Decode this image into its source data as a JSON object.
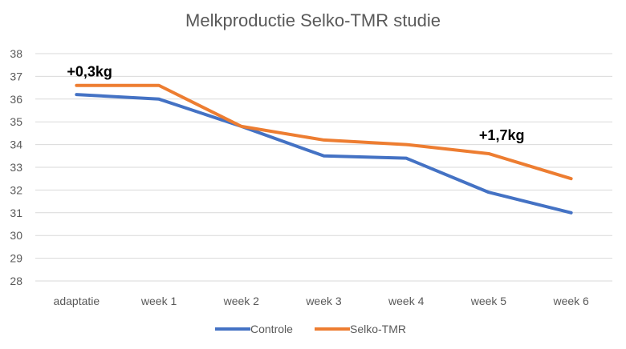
{
  "chart_data": {
    "type": "line",
    "title": "Melkproductie Selko-TMR studie",
    "xlabel": "",
    "ylabel": "",
    "categories": [
      "adaptatie",
      "week 1",
      "week 2",
      "week 3",
      "week 4",
      "week 5",
      "week 6"
    ],
    "ylim": [
      28,
      38
    ],
    "yticks": [
      28,
      29,
      30,
      31,
      32,
      33,
      34,
      35,
      36,
      37,
      38
    ],
    "grid": true,
    "legend_position": "bottom",
    "series": [
      {
        "name": "Controle",
        "color": "#4472C4",
        "values": [
          36.2,
          36.0,
          34.8,
          33.5,
          33.4,
          31.9,
          31.0
        ]
      },
      {
        "name": "Selko-TMR",
        "color": "#ED7D31",
        "values": [
          36.6,
          36.6,
          34.8,
          34.2,
          34.0,
          33.6,
          32.5
        ]
      }
    ],
    "annotations": [
      {
        "text": "+0,3kg",
        "category": "adaptatie",
        "y": 37.2
      },
      {
        "text": "+1,7kg",
        "category": "week 5",
        "y": 34.4
      }
    ]
  }
}
